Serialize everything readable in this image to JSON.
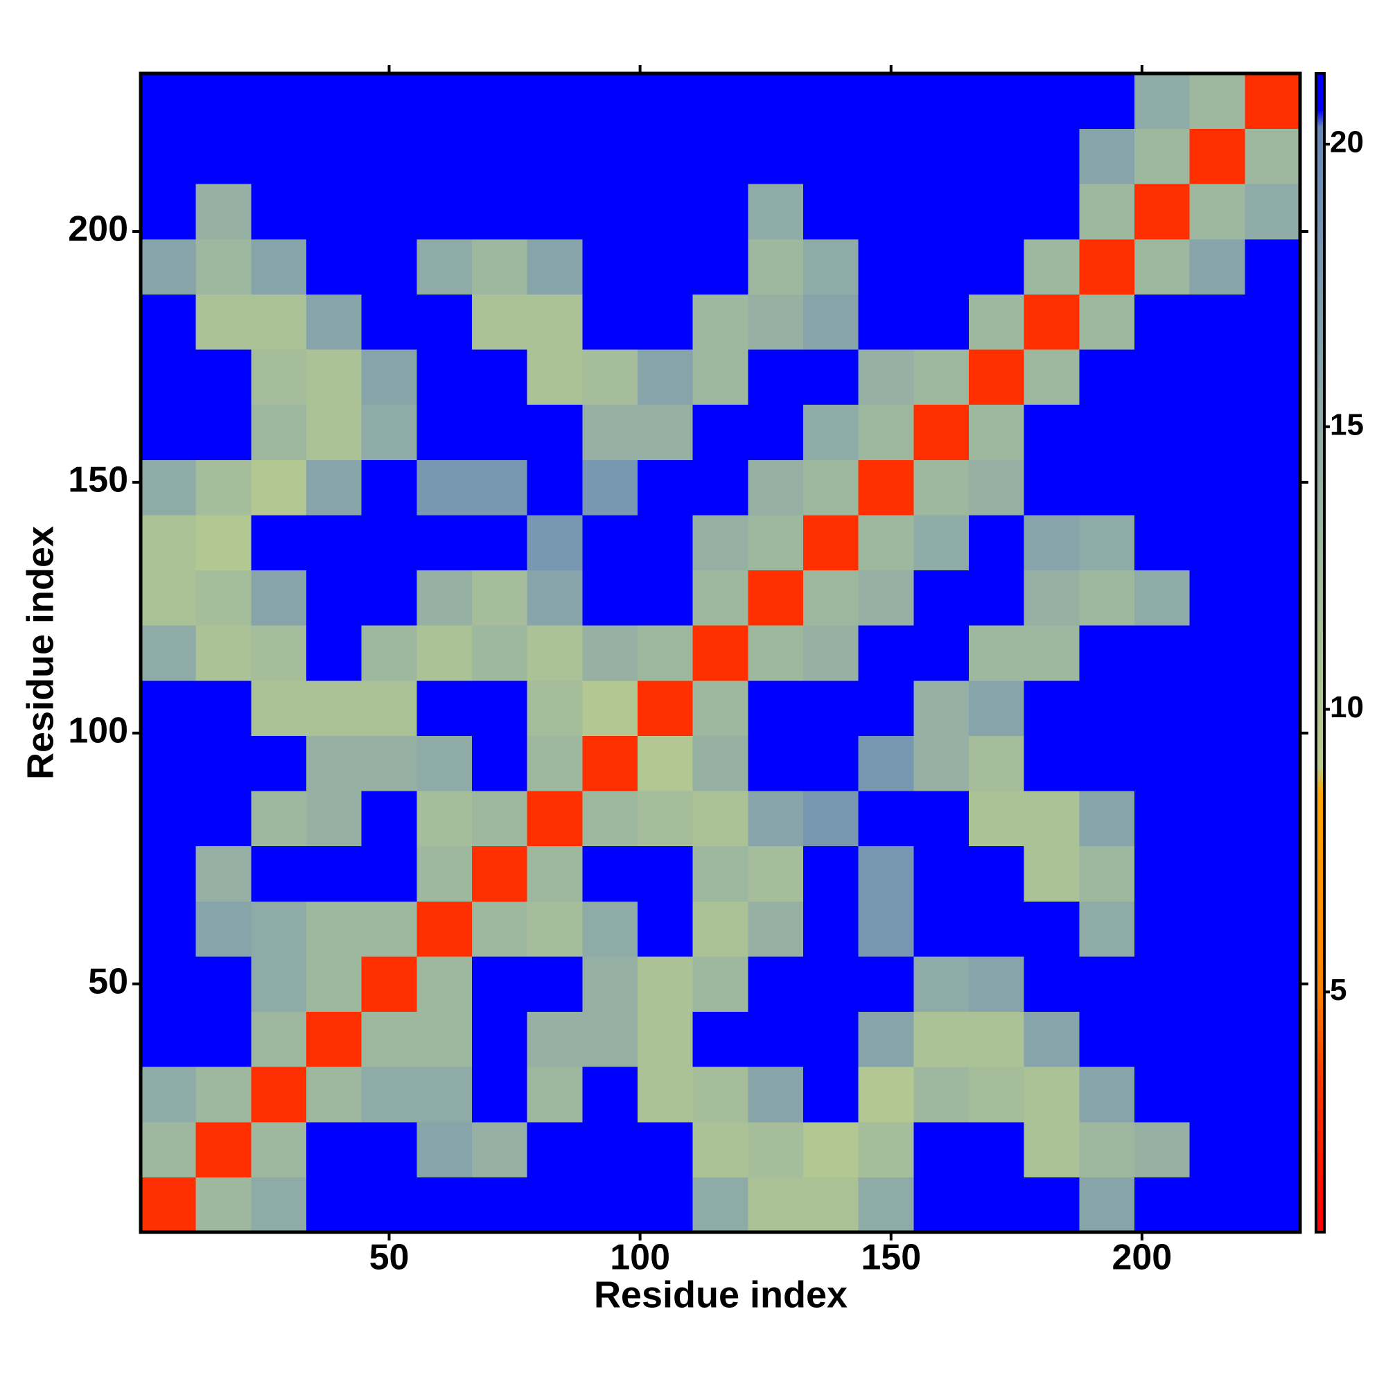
{
  "chart_data": {
    "type": "heatmap",
    "x_label": "Residue index",
    "y_label": "Residue index",
    "xlim": [
      0.5,
      231.5
    ],
    "ylim": [
      0.5,
      231.5
    ],
    "xticks": [
      50,
      100,
      150,
      200
    ],
    "yticks": [
      50,
      100,
      150,
      200
    ],
    "xbins": [
      0.5,
      11.5,
      22.5,
      33.5,
      44.5,
      55.5,
      66.5,
      77.5,
      88.5,
      99.5,
      110.5,
      121.5,
      132.5,
      143.5,
      154.5,
      165.5,
      176.5,
      187.5,
      198.5,
      209.5,
      220.5,
      231.5
    ],
    "ybins": [
      0.5,
      11.5,
      22.5,
      33.5,
      44.5,
      55.5,
      66.5,
      77.5,
      88.5,
      99.5,
      110.5,
      121.5,
      132.5,
      143.5,
      154.5,
      165.5,
      176.5,
      187.5,
      198.5,
      209.5,
      220.5,
      231.5
    ],
    "clim": [
      0.75,
      21.25
    ],
    "cticks": [
      5,
      10,
      15,
      20
    ],
    "colorscale": [
      {
        "value": 0.75,
        "color": "#ff0000"
      },
      {
        "value": 3.5,
        "color": "#ff3a00"
      },
      {
        "value": 5,
        "color": "#ff8000"
      },
      {
        "value": 8.5,
        "color": "#ffa500"
      },
      {
        "value": 9,
        "color": "#b8cc8c"
      },
      {
        "value": 13,
        "color": "#9eb8a0"
      },
      {
        "value": 20.3,
        "color": "#6688b8"
      },
      {
        "value": 20.6,
        "color": "#0000ff"
      },
      {
        "value": 21.25,
        "color": "#0000ff"
      }
    ],
    "z": [
      [
        3,
        13,
        15,
        21,
        21,
        21,
        21,
        21,
        21,
        21,
        15,
        11,
        11,
        15,
        21,
        21,
        21,
        16,
        21,
        21,
        21
      ],
      [
        13,
        3,
        13,
        21,
        21,
        16,
        14,
        21,
        21,
        21,
        11,
        12,
        10,
        12,
        21,
        21,
        11,
        13,
        14,
        21,
        21
      ],
      [
        15,
        13,
        3,
        13,
        15,
        15,
        21,
        13,
        21,
        11,
        12,
        16,
        21,
        10,
        13,
        12,
        11,
        16,
        21,
        21,
        21
      ],
      [
        21,
        21,
        13,
        3,
        13,
        13,
        21,
        14,
        14,
        11,
        21,
        21,
        21,
        16,
        11,
        11,
        16,
        21,
        21,
        21,
        21
      ],
      [
        21,
        21,
        15,
        13,
        3,
        13,
        21,
        21,
        14,
        11,
        13,
        21,
        21,
        21,
        15,
        16,
        21,
        21,
        21,
        21,
        21
      ],
      [
        21,
        16,
        15,
        13,
        13,
        3,
        13,
        12,
        15,
        21,
        11,
        14,
        21,
        18,
        21,
        21,
        21,
        15,
        21,
        21,
        21
      ],
      [
        21,
        14,
        21,
        21,
        21,
        13,
        3,
        13,
        21,
        21,
        13,
        12,
        21,
        18,
        21,
        21,
        11,
        13,
        21,
        21,
        21
      ],
      [
        21,
        21,
        13,
        14,
        21,
        12,
        13,
        3,
        13,
        12,
        11,
        16,
        18,
        21,
        21,
        11,
        11,
        16,
        21,
        21,
        21
      ],
      [
        21,
        21,
        21,
        14,
        14,
        15,
        21,
        13,
        3,
        10,
        14,
        21,
        21,
        18,
        14,
        12,
        21,
        21,
        21,
        21,
        21
      ],
      [
        21,
        21,
        11,
        11,
        11,
        21,
        21,
        12,
        10,
        3,
        13,
        21,
        21,
        21,
        14,
        16,
        21,
        21,
        21,
        21,
        21
      ],
      [
        15,
        11,
        12,
        21,
        13,
        11,
        13,
        11,
        14,
        13,
        3,
        13,
        14,
        21,
        21,
        13,
        13,
        21,
        21,
        21,
        21
      ],
      [
        11,
        12,
        16,
        21,
        21,
        14,
        12,
        16,
        21,
        21,
        13,
        3,
        13,
        14,
        21,
        21,
        14,
        13,
        15,
        21,
        21
      ],
      [
        11,
        10,
        21,
        21,
        21,
        21,
        21,
        18,
        21,
        21,
        14,
        13,
        3,
        13,
        15,
        21,
        16,
        15,
        21,
        21,
        21
      ],
      [
        15,
        12,
        10,
        16,
        21,
        18,
        18,
        21,
        18,
        21,
        21,
        14,
        13,
        3,
        13,
        14,
        21,
        21,
        21,
        21,
        21
      ],
      [
        21,
        21,
        13,
        11,
        15,
        21,
        21,
        21,
        14,
        14,
        21,
        21,
        15,
        13,
        3,
        13,
        21,
        21,
        21,
        21,
        21
      ],
      [
        21,
        21,
        12,
        11,
        16,
        21,
        21,
        11,
        12,
        16,
        13,
        21,
        21,
        14,
        13,
        3,
        13,
        21,
        21,
        21,
        21
      ],
      [
        21,
        11,
        11,
        16,
        21,
        21,
        11,
        11,
        21,
        21,
        13,
        14,
        16,
        21,
        21,
        13,
        3,
        13,
        21,
        21,
        21
      ],
      [
        16,
        13,
        16,
        21,
        21,
        15,
        13,
        16,
        21,
        21,
        21,
        13,
        15,
        21,
        21,
        21,
        13,
        3,
        13,
        16,
        21
      ],
      [
        21,
        14,
        21,
        21,
        21,
        21,
        21,
        21,
        21,
        21,
        21,
        15,
        21,
        21,
        21,
        21,
        21,
        13,
        3,
        13,
        15
      ],
      [
        21,
        21,
        21,
        21,
        21,
        21,
        21,
        21,
        21,
        21,
        21,
        21,
        21,
        21,
        21,
        21,
        21,
        16,
        13,
        3,
        13
      ],
      [
        21,
        21,
        21,
        21,
        21,
        21,
        21,
        21,
        21,
        21,
        21,
        21,
        21,
        21,
        21,
        21,
        21,
        21,
        15,
        13,
        3
      ]
    ]
  }
}
